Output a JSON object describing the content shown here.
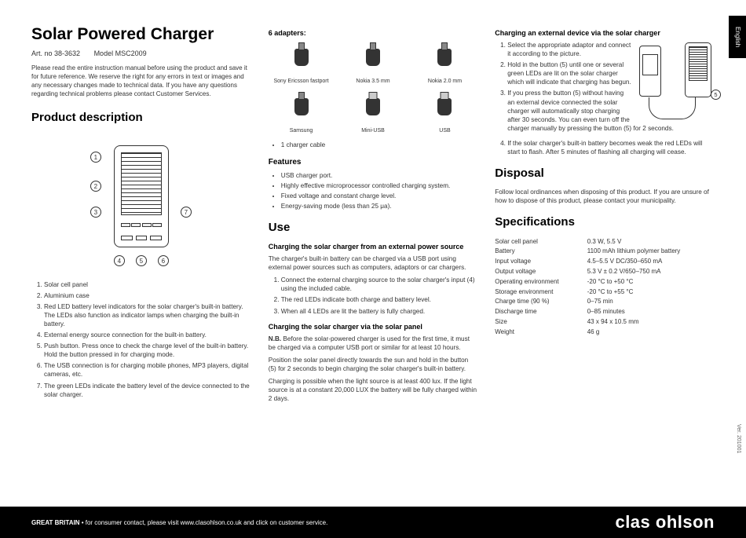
{
  "lang_tab": "English",
  "version": "Ver. 201001",
  "header": {
    "title": "Solar Powered Charger",
    "art_no": "Art. no 38-3632",
    "model": "Model MSC2009",
    "intro": "Please read the entire instruction manual before using the product and save it for future reference. We reserve the right for any errors in text or images and any necessary changes made to technical data. If you have any questions regarding technical problems please contact Customer Services."
  },
  "product_desc": {
    "heading": "Product description",
    "callouts": [
      "1",
      "2",
      "3",
      "4",
      "5",
      "6",
      "7"
    ],
    "list": [
      "Solar cell panel",
      "Aluminium case",
      "Red LED battery level indicators for the solar charger's built-in battery. The LEDs also function as indicator lamps when charging the built-in battery.",
      "External energy source connection for the built-in battery.",
      "Push button. Press once to check the charge level of the built-in battery. Hold the button pressed in for charging mode.",
      "The USB connection is for charging mobile phones, MP3 players, digital cameras, etc.",
      "The green LEDs indicate the battery level of the device connected to the solar charger."
    ]
  },
  "adapters": {
    "heading": "6 adapters:",
    "items": [
      {
        "label": "Sony Ericsson fastport"
      },
      {
        "label": "Nokia 3.5 mm"
      },
      {
        "label": "Nokia 2.0 mm"
      },
      {
        "label": "Samsung"
      },
      {
        "label": "Mini-USB"
      },
      {
        "label": "USB"
      }
    ],
    "extra": "1 charger cable"
  },
  "features": {
    "heading": "Features",
    "items": [
      "USB charger port.",
      "Highly effective microprocessor controlled charging system.",
      "Fixed voltage and constant charge level.",
      "Energy-saving mode (less than 25 μa)."
    ]
  },
  "use": {
    "heading": "Use",
    "sec1_title": "Charging the solar charger from an external power source",
    "sec1_intro": "The charger's built-in battery can be charged via a USB port using external power sources such as computers, adaptors or car chargers.",
    "sec1_steps": [
      "Connect the external charging source to the solar charger's input (4) using the included cable.",
      "The red LEDs indicate both charge and battery level.",
      "When all 4 LEDs are lit the battery is fully charged."
    ],
    "sec2_title": "Charging the solar charger via the solar panel",
    "sec2_nb": "N.B.",
    "sec2_nb_text": " Before the solar-powered charger is used for the first time, it must be charged via a computer USB port or similar for at least 10 hours.",
    "sec2_p1": "Position the solar panel directly towards the sun and hold in the button (5) for 2 seconds to begin charging the solar charger's built-in battery.",
    "sec2_p2": "Charging is possible when the light source is at least 400 lux. If the light source is at a constant 20,000 LUX the battery will be fully charged within 2 days."
  },
  "charging_ext": {
    "heading": "Charging an external device via the solar charger",
    "steps": [
      "Select the appropriate adaptor and connect it according to the picture.",
      "Hold in the button (5) until one or several green LEDs are lit on the solar charger which will indicate that charging has begun.",
      "If you press the button (5) without having an external device connected the solar charger will automatically stop charging after 30 seconds. You can even turn off the charger manually by pressing the button (5) for 2 seconds."
    ],
    "callout5": "5",
    "step4": "If the solar charger's built-in battery becomes weak the red LEDs will start to flash. After 5 minutes of flashing all charging will cease."
  },
  "disposal": {
    "heading": "Disposal",
    "text": "Follow local ordinances when disposing of this product. If you are unsure of how to dispose of this product, please contact your municipality."
  },
  "specs": {
    "heading": "Specifications",
    "rows": [
      [
        "Solar cell panel",
        "0.3 W, 5.5 V"
      ],
      [
        "Battery",
        "1100 mAh lithium polymer battery"
      ],
      [
        "Input voltage",
        "4.5–5.5 V DC/350–650 mA"
      ],
      [
        "Output voltage",
        "5.3 V ± 0.2 V/650–750 mA"
      ],
      [
        "Operating environment",
        "-20 °C to +50 °C"
      ],
      [
        "Storage environment",
        "-20 °C to +55 °C"
      ],
      [
        "Charge time (90 %)",
        "0–75 min"
      ],
      [
        "Discharge time",
        "0–85 minutes"
      ],
      [
        "Size",
        "43 x 94 x 10.5 mm"
      ],
      [
        "Weight",
        "46 g"
      ]
    ]
  },
  "footer": {
    "country": "GREAT BRITAIN",
    "text": " • for consumer contact, please visit www.clasohlson.co.uk and click on customer service.",
    "brand": "clas ohlson"
  }
}
